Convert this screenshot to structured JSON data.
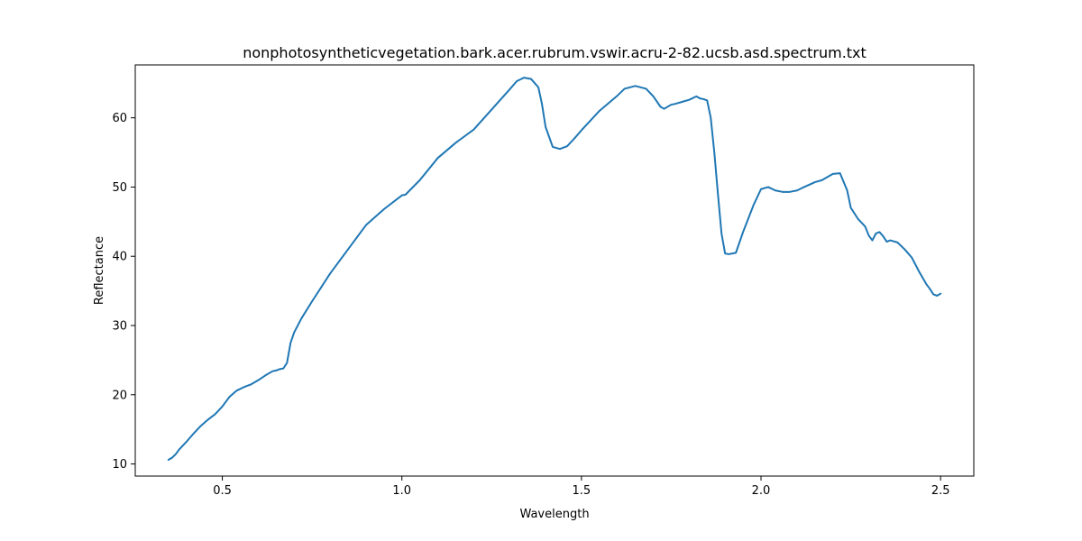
{
  "chart_data": {
    "type": "line",
    "title": "nonphotosyntheticvegetation.bark.acer.rubrum.vswir.acru-2-82.ucsb.asd.spectrum.txt",
    "xlabel": "Wavelength",
    "ylabel": "Reflectance",
    "xlim": [
      0.2575,
      2.5925
    ],
    "ylim": [
      8.25,
      67.64
    ],
    "xticks": [
      0.5,
      1.0,
      1.5,
      2.0,
      2.5
    ],
    "xtick_labels": [
      "0.5",
      "1.0",
      "1.5",
      "2.0",
      "2.5"
    ],
    "yticks": [
      10,
      20,
      30,
      40,
      50,
      60
    ],
    "ytick_labels": [
      "10",
      "20",
      "30",
      "40",
      "50",
      "60"
    ],
    "grid": false,
    "line_color": "#1f77b4",
    "series": [
      {
        "x": [
          0.35,
          0.36,
          0.37,
          0.38,
          0.4,
          0.42,
          0.44,
          0.46,
          0.48,
          0.5,
          0.52,
          0.54,
          0.56,
          0.58,
          0.6,
          0.62,
          0.64,
          0.65,
          0.66,
          0.67,
          0.68,
          0.69,
          0.7,
          0.72,
          0.75,
          0.8,
          0.85,
          0.9,
          0.95,
          1.0,
          1.01,
          1.05,
          1.1,
          1.15,
          1.2,
          1.25,
          1.3,
          1.32,
          1.34,
          1.36,
          1.38,
          1.39,
          1.4,
          1.42,
          1.44,
          1.46,
          1.48,
          1.5,
          1.55,
          1.6,
          1.62,
          1.65,
          1.68,
          1.7,
          1.72,
          1.73,
          1.75,
          1.76,
          1.78,
          1.8,
          1.82,
          1.83,
          1.84,
          1.85,
          1.86,
          1.87,
          1.88,
          1.89,
          1.9,
          1.91,
          1.92,
          1.93,
          1.95,
          1.98,
          2.0,
          2.02,
          2.04,
          2.06,
          2.08,
          2.1,
          2.12,
          2.15,
          2.17,
          2.2,
          2.22,
          2.24,
          2.25,
          2.27,
          2.29,
          2.3,
          2.31,
          2.32,
          2.33,
          2.34,
          2.35,
          2.36,
          2.38,
          2.4,
          2.42,
          2.44,
          2.46,
          2.47,
          2.48,
          2.49,
          2.5
        ],
        "y": [
          10.6,
          10.9,
          11.4,
          12.1,
          13.2,
          14.4,
          15.5,
          16.4,
          17.2,
          18.3,
          19.7,
          20.6,
          21.1,
          21.5,
          22.1,
          22.8,
          23.4,
          23.5,
          23.7,
          23.8,
          24.6,
          27.5,
          29.0,
          31.0,
          33.5,
          37.5,
          41.0,
          44.5,
          46.8,
          48.8,
          48.9,
          51.0,
          54.2,
          56.4,
          58.3,
          61.2,
          64.1,
          65.3,
          65.8,
          65.6,
          64.4,
          62.0,
          58.7,
          55.8,
          55.5,
          55.9,
          57.0,
          58.2,
          61.0,
          63.2,
          64.2,
          64.6,
          64.2,
          63.1,
          61.6,
          61.3,
          61.9,
          62.0,
          62.3,
          62.6,
          63.1,
          62.8,
          62.7,
          62.5,
          60.0,
          55.0,
          49.0,
          43.3,
          40.4,
          40.3,
          40.4,
          40.5,
          43.5,
          47.5,
          49.7,
          50.0,
          49.5,
          49.3,
          49.3,
          49.5,
          50.0,
          50.7,
          51.0,
          51.9,
          52.0,
          49.5,
          47.0,
          45.4,
          44.3,
          43.0,
          42.3,
          43.3,
          43.5,
          42.9,
          42.1,
          42.3,
          42.0,
          41.0,
          39.8,
          37.8,
          36.0,
          35.3,
          34.5,
          34.3,
          34.6
        ]
      }
    ]
  }
}
